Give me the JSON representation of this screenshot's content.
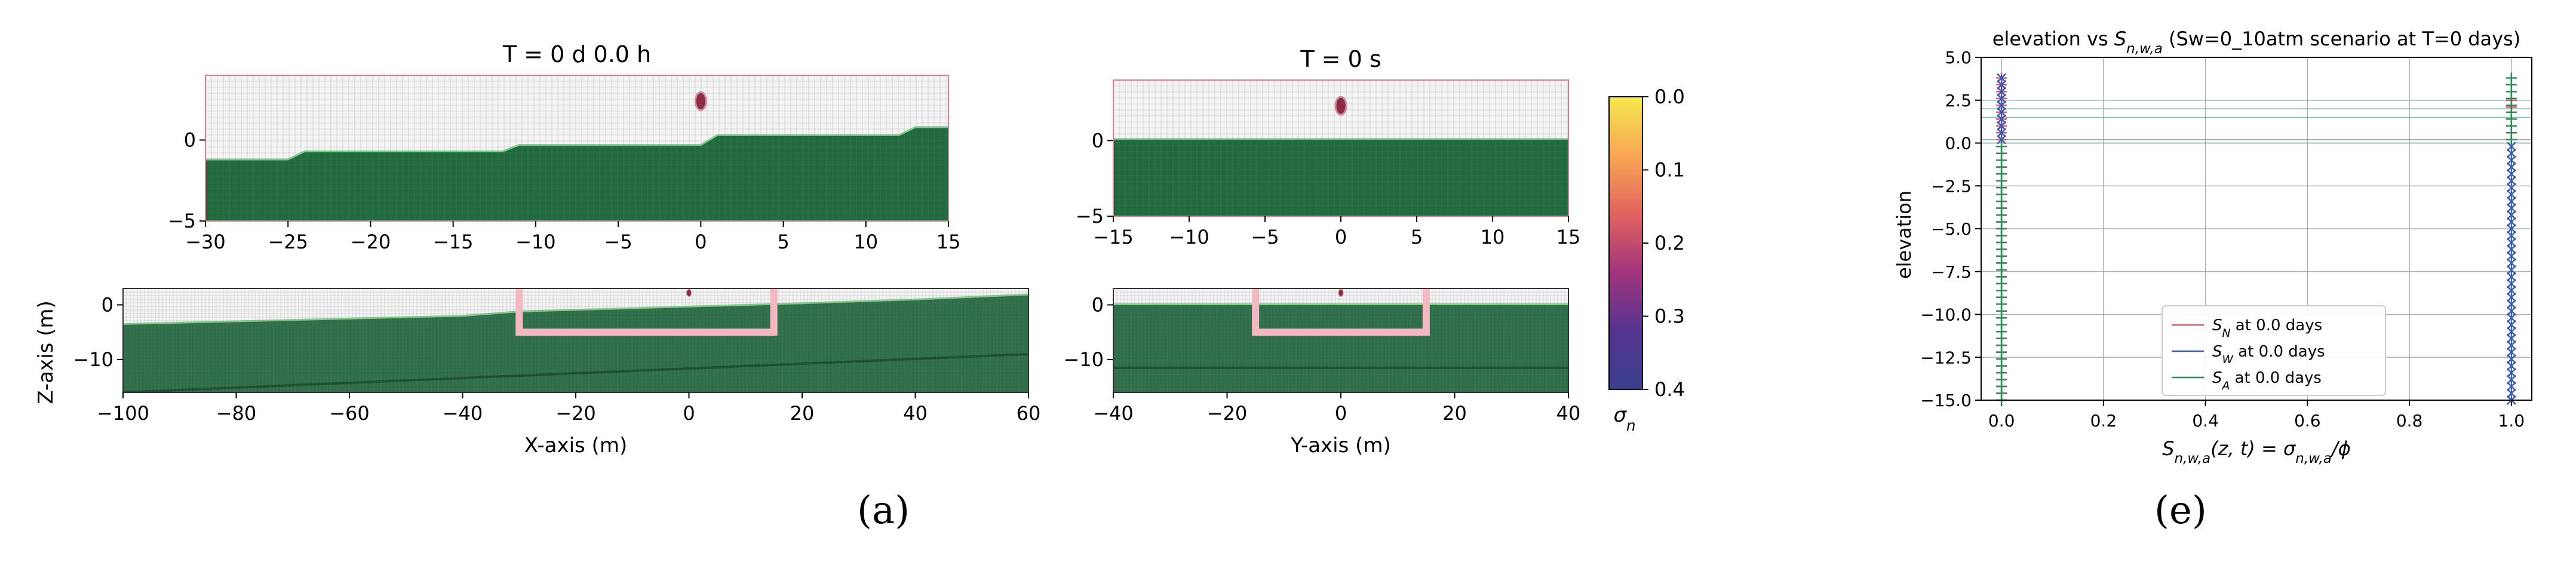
{
  "panel_labels": {
    "a": "(a)",
    "e": "(e)"
  },
  "chart_data": [
    {
      "type": "heatmap",
      "id": "xz_zoom",
      "title": "T = 0 d  0.0 h",
      "xlim": [
        -30,
        15
      ],
      "ylim": [
        -5,
        4
      ],
      "xticks": [
        "-30",
        "-25",
        "-20",
        "-15",
        "-10",
        "-5",
        "0",
        "5",
        "10",
        "15"
      ],
      "yticks": [
        "-5",
        "0"
      ],
      "grid": true,
      "fill_color": "#1f6b3d",
      "ground_profile": [
        [
          -30,
          -1.2
        ],
        [
          -25,
          -1.2
        ],
        [
          -24,
          -0.7
        ],
        [
          -12,
          -0.7
        ],
        [
          -11,
          -0.3
        ],
        [
          0,
          -0.3
        ],
        [
          1,
          0.3
        ],
        [
          12,
          0.3
        ],
        [
          13,
          0.8
        ],
        [
          15,
          0.8
        ]
      ],
      "marker": {
        "x": 0,
        "y": 2.4,
        "color": "#8b2d3f"
      }
    },
    {
      "type": "heatmap",
      "id": "yz_zoom",
      "title": "T = 0 s",
      "xlim": [
        -15,
        15
      ],
      "ylim": [
        -5,
        4
      ],
      "xticks": [
        "-15",
        "-10",
        "-5",
        "0",
        "5",
        "10",
        "15"
      ],
      "yticks": [
        "-5",
        "0"
      ],
      "grid": true,
      "fill_color": "#1f6b3d",
      "ground_profile": [
        [
          -15,
          0.1
        ],
        [
          15,
          0.1
        ]
      ],
      "marker": {
        "x": 0,
        "y": 2.3,
        "color": "#8b2d3f"
      }
    },
    {
      "type": "heatmap",
      "id": "xz_full",
      "xlabel": "X-axis (m)",
      "ylabel": "Z-axis (m)",
      "xlim": [
        -100,
        60
      ],
      "ylim": [
        -16,
        3
      ],
      "xticks": [
        "-100",
        "-80",
        "-60",
        "-40",
        "-20",
        "0",
        "20",
        "40",
        "60"
      ],
      "yticks": [
        "-10",
        "0"
      ],
      "grid": true,
      "fill_color": "#2c6e48",
      "ground_profile": [
        [
          -100,
          -3.5
        ],
        [
          -80,
          -3.0
        ],
        [
          -60,
          -2.5
        ],
        [
          -40,
          -2.0
        ],
        [
          -30,
          -1.2
        ],
        [
          -20,
          -0.9
        ],
        [
          0,
          -0.3
        ],
        [
          20,
          0.3
        ],
        [
          40,
          1.0
        ],
        [
          60,
          1.9
        ]
      ],
      "deep_line": [
        [
          -100,
          -16
        ],
        [
          60,
          -9
        ]
      ],
      "excavation": {
        "x": [
          -30,
          15
        ],
        "bottom": -5,
        "color": "#f4b8c2"
      },
      "marker": {
        "x": 0,
        "y": 2.2,
        "color": "#8b2d3f"
      }
    },
    {
      "type": "heatmap",
      "id": "yz_full",
      "xlabel": "Y-axis (m)",
      "xlim": [
        -40,
        40
      ],
      "ylim": [
        -16,
        3
      ],
      "xticks": [
        "-40",
        "-20",
        "0",
        "20",
        "40"
      ],
      "yticks": [
        "-10",
        "0"
      ],
      "grid": true,
      "fill_color": "#2c6e48",
      "ground_profile": [
        [
          -40,
          0.1
        ],
        [
          40,
          0.1
        ]
      ],
      "deep_line": [
        [
          -40,
          -11.5
        ],
        [
          40,
          -11.5
        ]
      ],
      "excavation": {
        "x": [
          -15,
          15
        ],
        "bottom": -5,
        "color": "#f4b8c2"
      },
      "marker": {
        "x": 0,
        "y": 2.2,
        "color": "#8b2d3f"
      }
    },
    {
      "type": "colorbar",
      "id": "sigma_colorbar",
      "label": "σn",
      "range": [
        0.0,
        0.4
      ],
      "reversed": true,
      "ticks": [
        "0.0",
        "0.1",
        "0.2",
        "0.3",
        "0.4"
      ],
      "colors": [
        "#f6e84d",
        "#f8a755",
        "#e2635e",
        "#a1357d",
        "#55348f",
        "#3b3f8f"
      ]
    },
    {
      "type": "line",
      "id": "saturation_profile",
      "title": "elevation vs S",
      "title_sub": "n,w,a",
      "title_rest": " (Sw=0_10atm scenario at T=0 days)",
      "xlabel": "S",
      "xlabel_sub": "n,w,a",
      "xlabel_rest": "(z, t) = σ",
      "xlabel_sub2": "n,w,a",
      "xlabel_end": "/ϕ",
      "ylabel": "elevation",
      "xlim": [
        -0.04,
        1.04
      ],
      "ylim": [
        -15,
        5
      ],
      "xticks": [
        "0.0",
        "0.2",
        "0.4",
        "0.6",
        "0.8",
        "1.0"
      ],
      "yticks": [
        "5.0",
        "2.5",
        "0.0",
        "-2.5",
        "-5.0",
        "-7.5",
        "-10.0",
        "-12.5",
        "-15.0"
      ],
      "grid": true,
      "legend": "lower-center",
      "hlines": [
        2.5,
        2.0,
        1.5,
        0.2,
        0.0
      ],
      "series": [
        {
          "name": "S",
          "sub": "N",
          "name_rest": " at 0.0 days",
          "color": "#e05a6e",
          "marker": "+",
          "segments": [
            {
              "x": 0.0,
              "z": [
                -15.0,
                4.0
              ]
            },
            {
              "x": 1.0,
              "z": [
                2.1,
                2.5
              ]
            }
          ]
        },
        {
          "name": "S",
          "sub": "W",
          "name_rest": " at 0.0 days",
          "color": "#3b5bb0",
          "marker": "x",
          "segments": [
            {
              "x": 0.0,
              "z": [
                0.2,
                4.0
              ]
            },
            {
              "x": 1.0,
              "z": [
                -15.0,
                -0.2
              ]
            }
          ]
        },
        {
          "name": "S",
          "sub": "A",
          "name_rest": " at 0.0 days",
          "color": "#2e8b57",
          "marker": "+",
          "segments": [
            {
              "x": 0.0,
              "z": [
                -15.0,
                0.0
              ]
            },
            {
              "x": 1.0,
              "z": [
                0.2,
                4.0
              ]
            }
          ]
        }
      ]
    }
  ]
}
